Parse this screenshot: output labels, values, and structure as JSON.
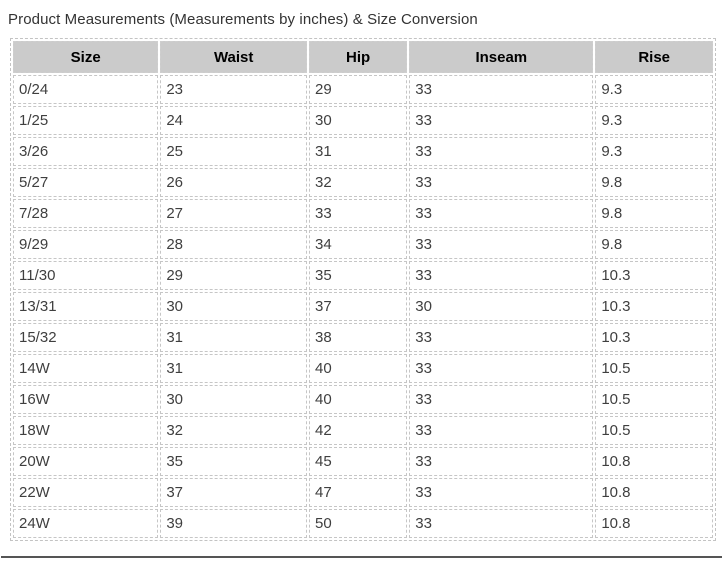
{
  "page": {
    "title": "Product Measurements (Measurements by inches) & Size Conversion"
  },
  "table": {
    "columns": [
      "Size",
      "Waist",
      "Hip",
      "Inseam",
      "Rise"
    ],
    "rows": [
      [
        "0/24",
        "23",
        "29",
        "33",
        "9.3"
      ],
      [
        "1/25",
        "24",
        "30",
        "33",
        "9.3"
      ],
      [
        "3/26",
        "25",
        "31",
        "33",
        "9.3"
      ],
      [
        "5/27",
        "26",
        "32",
        "33",
        "9.8"
      ],
      [
        "7/28",
        "27",
        "33",
        "33",
        "9.8"
      ],
      [
        "9/29",
        "28",
        "34",
        "33",
        "9.8"
      ],
      [
        "11/30",
        "29",
        "35",
        "33",
        "10.3"
      ],
      [
        "13/31",
        "30",
        "37",
        "30",
        "10.3"
      ],
      [
        "15/32",
        "31",
        "38",
        "33",
        "10.3"
      ],
      [
        "14W",
        "31",
        "40",
        "33",
        "10.5"
      ],
      [
        "16W",
        "30",
        "40",
        "33",
        "10.5"
      ],
      [
        "18W",
        "32",
        "42",
        "33",
        "10.5"
      ],
      [
        "20W",
        "35",
        "45",
        "33",
        "10.8"
      ],
      [
        "22W",
        "37",
        "47",
        "33",
        "10.8"
      ],
      [
        "24W",
        "39",
        "50",
        "33",
        "10.8"
      ]
    ]
  },
  "colors": {
    "header_bg": "#cbcbcb",
    "cell_border": "#c6c6c6",
    "body_text": "#3f3f3f",
    "header_text": "#000000",
    "title_text": "#333333",
    "bottom_rule": "#555555"
  }
}
